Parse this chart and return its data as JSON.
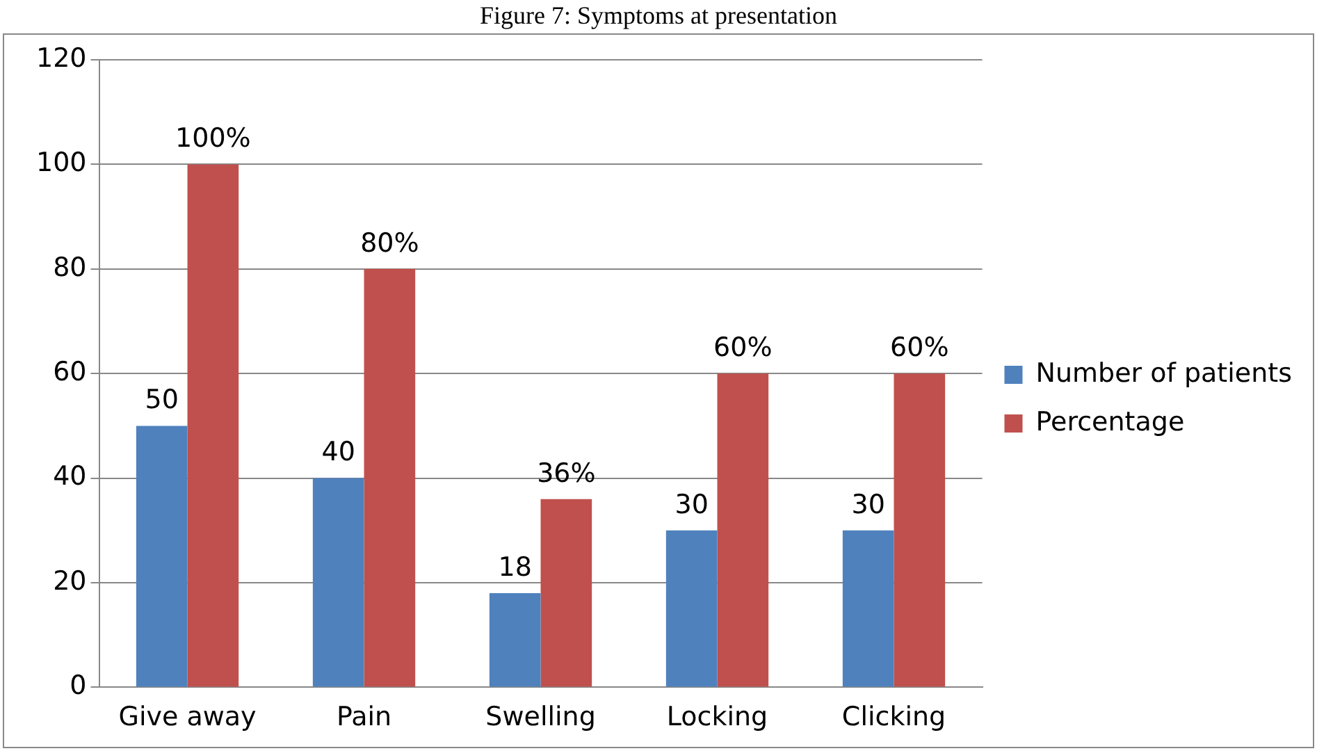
{
  "chart_data": {
    "type": "bar",
    "title": "Figure 7: Symptoms at presentation",
    "categories": [
      "Give away",
      "Pain",
      "Swelling",
      "Locking",
      "Clicking"
    ],
    "series": [
      {
        "name": "Number of patients",
        "color": "#4f81bd",
        "values": [
          50,
          40,
          18,
          30,
          30
        ],
        "value_labels": [
          "50",
          "40",
          "18",
          "30",
          "30"
        ]
      },
      {
        "name": "Percentage",
        "color": "#c0504d",
        "values": [
          100,
          80,
          36,
          60,
          60
        ],
        "value_labels": [
          "100%",
          "80%",
          "36%",
          "60%",
          "60%"
        ]
      }
    ],
    "ylim": [
      0,
      120
    ],
    "yticks": [
      0,
      20,
      40,
      60,
      80,
      100,
      120
    ],
    "grid": "y",
    "legend": "right"
  }
}
